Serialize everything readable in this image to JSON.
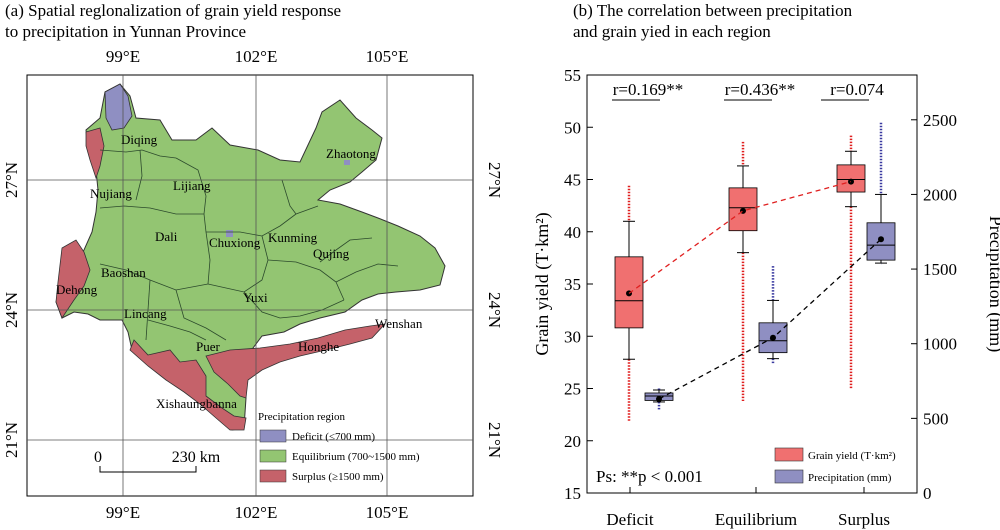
{
  "panel_a": {
    "title_line1": "(a) Spatial reglonalization of grain yield response",
    "title_line2": "to precipitation in Yunnan Province",
    "lon_labels": [
      "99°E",
      "102°E",
      "105°E"
    ],
    "lat_labels": [
      "27°N",
      "24°N",
      "21°N"
    ],
    "regions": [
      {
        "name": "Diqing"
      },
      {
        "name": "Zhaotong"
      },
      {
        "name": "Nujiang"
      },
      {
        "name": "Lijiang"
      },
      {
        "name": "Dali"
      },
      {
        "name": "Chuxiong"
      },
      {
        "name": "Kunming"
      },
      {
        "name": "Qujing"
      },
      {
        "name": "Baoshan"
      },
      {
        "name": "Dehong"
      },
      {
        "name": "Yuxi"
      },
      {
        "name": "Lincang"
      },
      {
        "name": "Wenshan"
      },
      {
        "name": "Puer"
      },
      {
        "name": "Honghe"
      },
      {
        "name": "Xishaungbanna"
      }
    ],
    "scale_bar": {
      "start": "0",
      "end": "230 km"
    },
    "legend": {
      "title": "Precipitation region",
      "items": [
        {
          "label": "Deficit (≤700 mm)",
          "color": "#8f8fc2"
        },
        {
          "label": "Equilibrium (700~1500 mm)",
          "color": "#93c572"
        },
        {
          "label": "Surplus (≥1500 mm)",
          "color": "#c5626a"
        }
      ]
    }
  },
  "chart_data": {
    "type": "box",
    "title_line1": "(b) The correlation between precipitation",
    "title_line2": "and grain yied in each region",
    "categories": [
      "Deficit",
      "Equilibrium",
      "Surplus"
    ],
    "ylabel_left": "Grain yield (T·km²)",
    "ylabel_right": "Precipitation (mm)",
    "ylim_left": [
      15,
      55
    ],
    "ylim_right": [
      0,
      2800
    ],
    "yticks_left": [
      15,
      20,
      25,
      30,
      35,
      40,
      45,
      50,
      55
    ],
    "yticks_right": [
      0,
      500,
      1000,
      1500,
      2000,
      2500
    ],
    "correlations": [
      "r=0.169**",
      "r=0.436**",
      "r=0.074"
    ],
    "note": "Ps: **p < 0.001",
    "legend_position": "bottom-right",
    "series": [
      {
        "name": "Grain yield (T·km²)",
        "color": "#f07070",
        "box": [
          {
            "category": "Deficit",
            "whisker_low": 27.8,
            "q1": 30.8,
            "median": 33.4,
            "q3": 37.6,
            "whisker_high": 41.0,
            "mean": 34.1,
            "outlier_min": 21.8,
            "outlier_max": 44.4
          },
          {
            "category": "Equilibrium",
            "whisker_low": 38.0,
            "q1": 40.1,
            "median": 42.3,
            "q3": 44.2,
            "whisker_high": 46.3,
            "mean": 42.0,
            "outlier_min": 23.8,
            "outlier_max": 48.6
          },
          {
            "category": "Surplus",
            "whisker_low": 42.4,
            "q1": 43.8,
            "median": 45.0,
            "q3": 46.4,
            "whisker_high": 47.7,
            "mean": 44.8,
            "outlier_min": 25.0,
            "outlier_max": 49.2
          }
        ]
      },
      {
        "name": "Precipitation (mm)",
        "color": "#8f8fc2",
        "box": [
          {
            "category": "Deficit",
            "whisker_low": 610,
            "q1": 620,
            "median": 650,
            "q3": 670,
            "whisker_high": 690,
            "mean": 630,
            "outlier_min": 560,
            "outlier_max": 700
          },
          {
            "category": "Equilibrium",
            "whisker_low": 900,
            "q1": 940,
            "median": 1020,
            "q3": 1140,
            "whisker_high": 1290,
            "mean": 1040,
            "outlier_min": 870,
            "outlier_max": 1520
          },
          {
            "category": "Surplus",
            "whisker_low": 1540,
            "q1": 1560,
            "median": 1660,
            "q3": 1810,
            "whisker_high": 2000,
            "mean": 1700,
            "outlier_min": 1540,
            "outlier_max": 2480
          }
        ]
      }
    ]
  }
}
